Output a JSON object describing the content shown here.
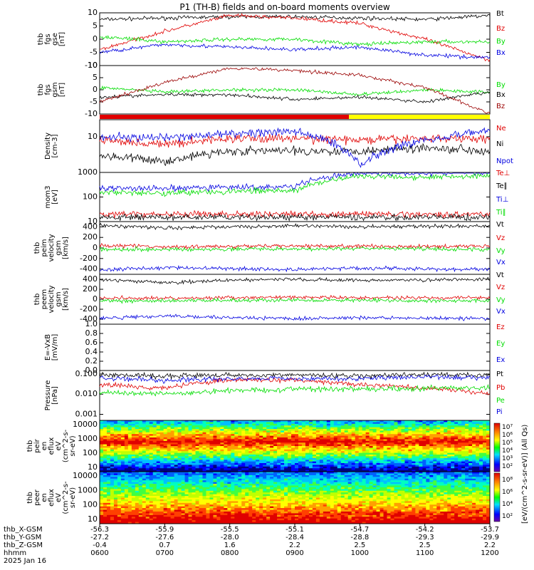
{
  "title": "P1 (TH-B) fields and on-board moments overview",
  "colors": {
    "black": "#000000",
    "red": "#e00000",
    "darkred": "#9a0000",
    "green": "#00dd00",
    "blue": "#0000e0",
    "yellow": "#ffff00"
  },
  "chart_data": [
    {
      "type": "line",
      "panel": "fgs-gse",
      "ylabel": [
        "thb",
        "fgs",
        "gse",
        "[nT]"
      ],
      "ylim": [
        -10,
        10
      ],
      "ticks": [
        "10",
        "5",
        "0",
        "-5",
        "-10"
      ],
      "x": [
        "0600",
        "0700",
        "0800",
        "0900",
        "1000",
        "1100",
        "1200"
      ],
      "series": [
        {
          "name": "Bt",
          "color": "black",
          "values": [
            7.5,
            8.0,
            8.5,
            8.5,
            8.0,
            7.5,
            9.0
          ]
        },
        {
          "name": "Bz",
          "color": "red",
          "values": [
            -4,
            3,
            9,
            8,
            6,
            0,
            -8
          ]
        },
        {
          "name": "By",
          "color": "green",
          "values": [
            1,
            -1,
            0,
            0,
            -2,
            -1,
            -1
          ]
        },
        {
          "name": "Bx",
          "color": "blue",
          "values": [
            -5,
            -2,
            -3,
            -4,
            -3,
            -6,
            -7
          ]
        }
      ]
    },
    {
      "type": "line",
      "panel": "fgs-gsm",
      "ylabel": [
        "thb",
        "fgs",
        "gsm",
        "[nT]"
      ],
      "ylim": [
        -10,
        10
      ],
      "ticks": [
        "10",
        "5",
        "0",
        "-5",
        "-10"
      ],
      "series": [
        {
          "name": "By",
          "color": "green",
          "values": [
            1,
            -1,
            0,
            0,
            -2,
            0,
            -1
          ]
        },
        {
          "name": "Bx",
          "color": "black",
          "values": [
            -3,
            -2,
            -2,
            -4,
            -3,
            -5,
            -1
          ]
        },
        {
          "name": "Bz",
          "color": "darkred",
          "values": [
            -5,
            3,
            9,
            8,
            6,
            1,
            -10
          ]
        }
      ]
    },
    {
      "type": "bar",
      "panel": "mode-bar",
      "segments": [
        {
          "color": "red",
          "from": "0600",
          "to": "0950"
        },
        {
          "color": "yellow",
          "from": "0950",
          "to": "1200"
        }
      ]
    },
    {
      "type": "line",
      "panel": "density",
      "ylabel": [
        "Density",
        "[cm-3]"
      ],
      "ylim": [
        1,
        30
      ],
      "scale": "log",
      "ticks": [
        "10"
      ],
      "series": [
        {
          "name": "Ne",
          "color": "red",
          "values": [
            8,
            6,
            9,
            9,
            8,
            9,
            9
          ]
        },
        {
          "name": "Ni",
          "color": "black",
          "values": [
            3,
            2,
            4,
            4,
            4,
            5,
            4
          ]
        },
        {
          "name": "Npot",
          "color": "blue",
          "values": [
            10,
            9,
            12,
            14,
            1.5,
            8,
            15
          ]
        }
      ]
    },
    {
      "type": "line",
      "panel": "temperature",
      "ylabel": [
        "mom3",
        "[eV]"
      ],
      "ylim": [
        10,
        1000
      ],
      "scale": "log",
      "ticks": [
        "1000",
        "100",
        "10"
      ],
      "series": [
        {
          "name": "Te⊥",
          "color": "red",
          "values": [
            20,
            20,
            20,
            20,
            20,
            20,
            20
          ]
        },
        {
          "name": "Te∥",
          "color": "black",
          "values": [
            15,
            15,
            15,
            15,
            15,
            15,
            15
          ]
        },
        {
          "name": "Ti⊥",
          "color": "blue",
          "values": [
            230,
            220,
            250,
            260,
            1000,
            950,
            1000
          ]
        },
        {
          "name": "Ti∥",
          "color": "green",
          "values": [
            160,
            150,
            170,
            180,
            700,
            650,
            750
          ]
        }
      ]
    },
    {
      "type": "line",
      "panel": "peim-velocity",
      "ylabel": [
        "thb",
        "peim",
        "velocity",
        "gsm",
        "[km/s]"
      ],
      "ylim": [
        -500,
        500
      ],
      "ticks": [
        "400",
        "200",
        "0",
        "-200",
        "-400"
      ],
      "series": [
        {
          "name": "Vt",
          "color": "black",
          "values": [
            430,
            380,
            400,
            420,
            400,
            410,
            420
          ]
        },
        {
          "name": "Vz",
          "color": "red",
          "values": [
            50,
            20,
            30,
            40,
            30,
            30,
            40
          ]
        },
        {
          "name": "Vy",
          "color": "green",
          "values": [
            -20,
            -30,
            -20,
            -20,
            -10,
            -20,
            -30
          ]
        },
        {
          "name": "Vx",
          "color": "blue",
          "values": [
            -420,
            -370,
            -390,
            -410,
            -380,
            -400,
            -410
          ]
        }
      ]
    },
    {
      "type": "line",
      "panel": "peem-velocity",
      "ylabel": [
        "thb",
        "peem",
        "velocity",
        "gsm",
        "[km/s]"
      ],
      "ylim": [
        -500,
        500
      ],
      "ticks": [
        "400",
        "200",
        "0",
        "-200",
        "-400"
      ],
      "series": [
        {
          "name": "Vt",
          "color": "black",
          "values": [
            400,
            330,
            380,
            400,
            380,
            390,
            400
          ]
        },
        {
          "name": "Vz",
          "color": "red",
          "values": [
            30,
            20,
            30,
            40,
            30,
            30,
            30
          ]
        },
        {
          "name": "Vy",
          "color": "green",
          "values": [
            -30,
            -30,
            -20,
            -20,
            -20,
            -30,
            -30
          ]
        },
        {
          "name": "Vx",
          "color": "blue",
          "values": [
            -380,
            -330,
            -370,
            -390,
            -370,
            -380,
            -390
          ]
        }
      ]
    },
    {
      "type": "line",
      "panel": "efield",
      "ylabel": [
        "E=-VxB",
        "[mV/m]"
      ],
      "ylim": [
        0,
        1.0
      ],
      "ticks": [
        "1.0",
        "0.8",
        "0.6",
        "0.4",
        "0.2",
        "0.0"
      ],
      "series": [
        {
          "name": "Ez",
          "color": "red",
          "values": []
        },
        {
          "name": "Ey",
          "color": "green",
          "values": []
        },
        {
          "name": "Ex",
          "color": "blue",
          "values": []
        }
      ]
    },
    {
      "type": "line",
      "panel": "pressure",
      "ylabel": [
        "Pressure",
        "[nPa]"
      ],
      "ylim": [
        0.0005,
        0.15
      ],
      "scale": "log",
      "ticks": [
        "0.100",
        "0.010",
        "0.001"
      ],
      "series": [
        {
          "name": "Pt",
          "color": "black",
          "values": [
            0.09,
            0.08,
            0.09,
            0.09,
            0.08,
            0.09,
            0.09
          ]
        },
        {
          "name": "Pb",
          "color": "red",
          "values": [
            0.03,
            0.02,
            0.05,
            0.05,
            0.03,
            0.02,
            0.01
          ]
        },
        {
          "name": "Pe",
          "color": "green",
          "values": [
            0.012,
            0.01,
            0.015,
            0.018,
            0.018,
            0.02,
            0.022
          ]
        },
        {
          "name": "Pi",
          "color": "blue",
          "values": [
            0.06,
            0.05,
            0.06,
            0.06,
            0.06,
            0.07,
            0.07
          ]
        }
      ]
    },
    {
      "type": "heatmap",
      "panel": "peir-spectrogram",
      "ylabel": [
        "thb",
        "peir",
        "en",
        "eflux",
        "eV",
        "(cm^2-s-",
        "sr-eV)"
      ],
      "ylim": [
        5,
        20000
      ],
      "scale": "log",
      "ticks": [
        "10000",
        "1000",
        "100",
        "10"
      ]
    },
    {
      "type": "heatmap",
      "panel": "peer-spectrogram",
      "ylabel": [
        "thb",
        "peer",
        "en",
        "eflux",
        "eV",
        "(cm^2-s-",
        "sr-eV)"
      ],
      "ylim": [
        5,
        20000
      ],
      "scale": "log",
      "ticks": [
        "10000",
        "1000",
        "100",
        "10"
      ]
    }
  ],
  "colorbar": {
    "label": "[eV/(cm^2-s-sr-eV)] (All Qs)",
    "top_ticks": [
      "10⁷",
      "10⁶",
      "10⁵",
      "10⁴",
      "10³",
      "10²"
    ],
    "bottom_ticks": [
      "10⁸",
      "10⁶",
      "10⁴",
      "10²"
    ]
  },
  "xaxis": {
    "row_labels": [
      "thb_X-GSM",
      "thb_Y-GSM",
      "thb_Z-GSM",
      "hhmm",
      "2025 Jan 16"
    ],
    "columns": [
      [
        "-56.3",
        "-27.2",
        "-0.4",
        "0600"
      ],
      [
        "-55.9",
        "-27.6",
        "0.7",
        "0700"
      ],
      [
        "-55.5",
        "-28.0",
        "1.6",
        "0800"
      ],
      [
        "-55.1",
        "-28.4",
        "2.2",
        "0900"
      ],
      [
        "-54.7",
        "-28.8",
        "2.5",
        "1000"
      ],
      [
        "-54.2",
        "-29.3",
        "2.5",
        "1100"
      ],
      [
        "-53.7",
        "-29.9",
        "2.2",
        "1200"
      ]
    ]
  }
}
